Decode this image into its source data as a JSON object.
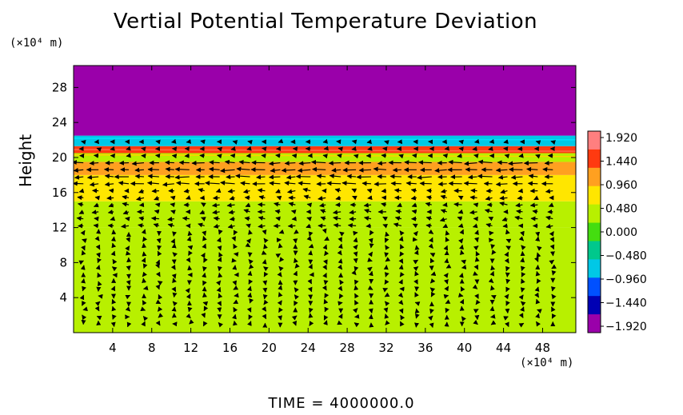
{
  "chart_data": {
    "type": "heatmap",
    "title": "Vertial Potential Temperature Deviation",
    "ylabel": "Height",
    "x_unit_label": "(×10⁴ m)",
    "y_unit_label": "(×10⁴ m)",
    "xlim": [
      0,
      51.4
    ],
    "ylim": [
      0,
      30.5
    ],
    "x_ticks": [
      4,
      8,
      12,
      16,
      20,
      24,
      28,
      32,
      36,
      40,
      44,
      48
    ],
    "y_ticks": [
      4,
      8,
      12,
      16,
      20,
      24,
      28
    ],
    "colorbar": {
      "ticks": [
        1.92,
        1.44,
        0.96,
        0.48,
        0.0,
        -0.48,
        -0.96,
        -1.44,
        -1.92
      ],
      "tick_labels": [
        "1.920",
        "1.440",
        "0.960",
        "0.480",
        "0.000",
        "−0.480",
        "−0.960",
        "−1.440",
        "−1.920"
      ],
      "colors": [
        "#ff7f7f",
        "#ff3a10",
        "#ffa020",
        "#ffe600",
        "#b8f000",
        "#44dd10",
        "#00c88c",
        "#00c8e6",
        "#0050ff",
        "#0000b4",
        "#9a00aa"
      ]
    },
    "layers": [
      {
        "y_from": 0,
        "y_to": 12,
        "value": 0.2
      },
      {
        "y_from": 12,
        "y_to": 15,
        "value": 0.45
      },
      {
        "y_from": 15,
        "y_to": 18,
        "value": 0.75
      },
      {
        "y_from": 18,
        "y_to": 19.5,
        "value": 1.0
      },
      {
        "y_from": 19.5,
        "y_to": 20.5,
        "value": 0.4
      },
      {
        "y_from": 20.5,
        "y_to": 21.3,
        "value": 1.4
      },
      {
        "y_from": 21.3,
        "y_to": 22.5,
        "value": -0.8
      },
      {
        "y_from": 22.5,
        "y_to": 30.5,
        "value": -1.92
      }
    ],
    "vector_field": "horizontal wind arrows, strongest leftward flow near heights 17-19"
  },
  "footer": "TIME  =  4000000.0"
}
